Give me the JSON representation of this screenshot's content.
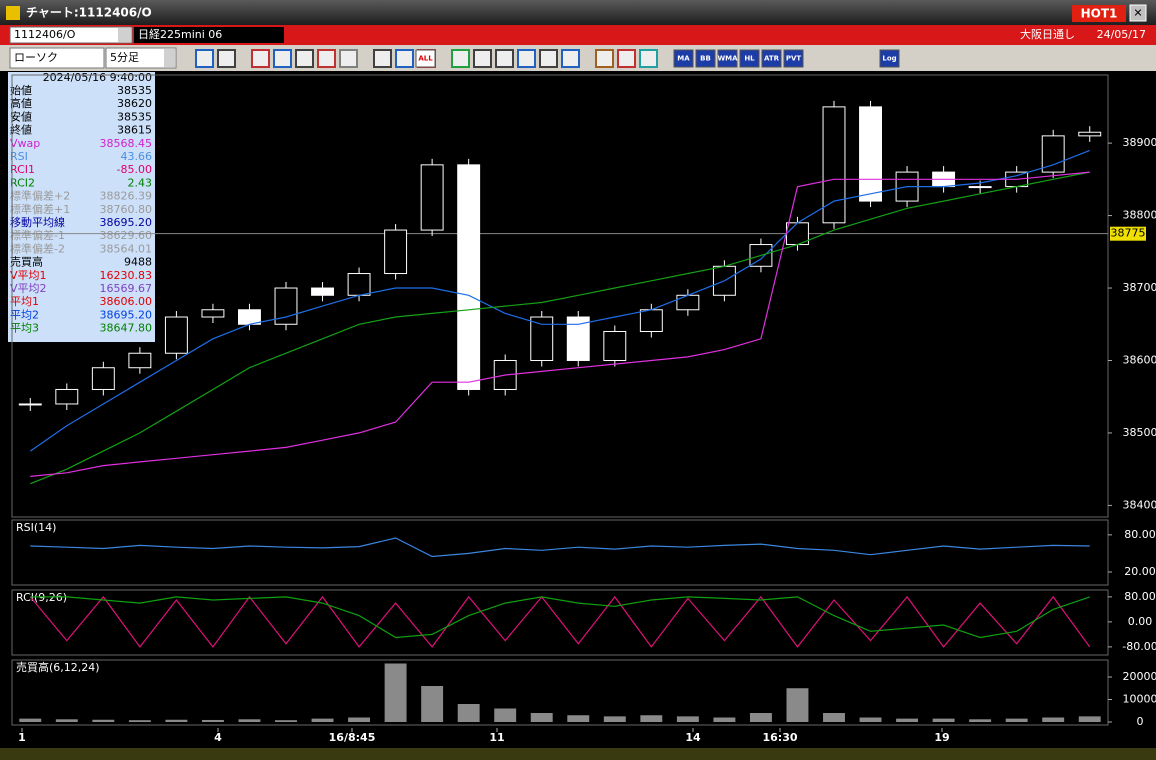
{
  "window": {
    "title": "チャート:1112406/O",
    "badge": "HOT1"
  },
  "toolbar": {
    "symbol": "1112406/O",
    "name": "日経225mini 06",
    "market": "大阪日通し",
    "date": "24/05/17",
    "chart_kind": "ローソク",
    "interval": "5分足",
    "buttons": [
      "ALL",
      "MA",
      "BB",
      "WMA",
      "HL",
      "ATR",
      "PVT",
      "Log"
    ]
  },
  "info_panel": {
    "datetime": "2024/05/16 9:40:00",
    "rows": [
      {
        "label": "始値",
        "value": "38535",
        "color": "#000000"
      },
      {
        "label": "高値",
        "value": "38620",
        "color": "#000000"
      },
      {
        "label": "安値",
        "value": "38535",
        "color": "#000000"
      },
      {
        "label": "終値",
        "value": "38615",
        "color": "#000000"
      },
      {
        "label": "Vwap",
        "value": "38568.45",
        "color": "#d020d0"
      },
      {
        "label": "RSI",
        "value": "43.66",
        "color": "#4a8ee0"
      },
      {
        "label": "RCI1",
        "value": "-85.00",
        "color": "#e0006a"
      },
      {
        "label": "RCI2",
        "value": "2.43",
        "color": "#008000"
      },
      {
        "label": "標準偏差+2",
        "value": "38826.39",
        "color": "#9a9a9a"
      },
      {
        "label": "標準偏差+1",
        "value": "38760.80",
        "color": "#9a9a9a"
      },
      {
        "label": "移動平均線",
        "value": "38695.20",
        "color": "#0000a0"
      },
      {
        "label": "標準偏差-1",
        "value": "38629.60",
        "color": "#9a9a9a"
      },
      {
        "label": "標準偏差-2",
        "value": "38564.01",
        "color": "#9a9a9a"
      },
      {
        "label": "売買高",
        "value": "9488",
        "color": "#000000"
      },
      {
        "label": "V平均1",
        "value": "16230.83",
        "color": "#e00000"
      },
      {
        "label": "V平均2",
        "value": "16569.67",
        "color": "#8040c0"
      },
      {
        "label": "平均1",
        "value": "38606.00",
        "color": "#e00000"
      },
      {
        "label": "平均2",
        "value": "38695.20",
        "color": "#0040e0"
      },
      {
        "label": "平均3",
        "value": "38647.80",
        "color": "#008000"
      }
    ]
  },
  "chart_data": [
    {
      "type": "candlestick",
      "ylim": [
        38384,
        38994
      ],
      "yticks": [
        38900,
        38800,
        38700,
        38600,
        38500,
        38400
      ],
      "current_price": 38775,
      "x_labels": [
        "1",
        "4",
        "16/8:45",
        "11",
        "14",
        "16:30",
        "19"
      ],
      "series": [
        {
          "name": "終値",
          "color": "#ffffff",
          "values": [
            38540,
            38560,
            38590,
            38610,
            38660,
            38670,
            38650,
            38700,
            38690,
            38720,
            38780,
            38870,
            38560,
            38600,
            38660,
            38600,
            38640,
            38670,
            38690,
            38730,
            38760,
            38790,
            38950,
            38820,
            38860,
            38840,
            38840,
            38860,
            38910,
            38915
          ]
        },
        {
          "name": "平均2",
          "color": "#1e6ee8",
          "values": [
            38475,
            38510,
            38540,
            38570,
            38600,
            38630,
            38650,
            38660,
            38675,
            38690,
            38700,
            38700,
            38690,
            38665,
            38650,
            38650,
            38660,
            38670,
            38690,
            38710,
            38740,
            38790,
            38820,
            38830,
            38840,
            38840,
            38845,
            38855,
            38870,
            38890
          ]
        },
        {
          "name": "平均3",
          "color": "#14a014",
          "values": [
            38430,
            38450,
            38475,
            38500,
            38530,
            38560,
            38590,
            38610,
            38630,
            38650,
            38660,
            38665,
            38670,
            38675,
            38680,
            38690,
            38700,
            38710,
            38720,
            38730,
            38745,
            38760,
            38780,
            38795,
            38810,
            38820,
            38830,
            38840,
            38850,
            38860
          ]
        },
        {
          "name": "Vwap",
          "color": "#e030e0",
          "values": [
            38440,
            38445,
            38455,
            38460,
            38465,
            38470,
            38475,
            38480,
            38490,
            38500,
            38515,
            38570,
            38570,
            38580,
            38585,
            38590,
            38595,
            38600,
            38605,
            38615,
            38630,
            38840,
            38850,
            38850,
            38850,
            38850,
            38850,
            38850,
            38855,
            38860
          ]
        }
      ]
    },
    {
      "type": "line",
      "title": "RSI(14)",
      "ylim": [
        -1,
        104
      ],
      "yticks": [
        {
          "value": 80,
          "label": "80.00"
        },
        {
          "value": 20,
          "label": "20.00"
        }
      ],
      "series": [
        {
          "name": "RSI",
          "color": "#3a86e0",
          "values": [
            62,
            60,
            58,
            63,
            60,
            58,
            62,
            60,
            59,
            61,
            75,
            45,
            50,
            58,
            55,
            60,
            57,
            62,
            60,
            63,
            65,
            58,
            55,
            48,
            55,
            62,
            57,
            60,
            63,
            62
          ]
        }
      ]
    },
    {
      "type": "line",
      "title": "RCI(9,26)",
      "ylim": [
        -106,
        102
      ],
      "yticks": [
        {
          "value": 80,
          "label": "80.00"
        },
        {
          "value": 0,
          "label": "0.00"
        },
        {
          "value": -80,
          "label": "-80.00"
        }
      ],
      "series": [
        {
          "name": "RCI1",
          "color": "#e0107a",
          "values": [
            80,
            -60,
            80,
            -80,
            70,
            -80,
            80,
            -70,
            80,
            -80,
            60,
            -80,
            80,
            -60,
            80,
            -70,
            80,
            -80,
            75,
            -60,
            80,
            -80,
            70,
            -60,
            80,
            -80,
            60,
            -70,
            80,
            -80
          ]
        },
        {
          "name": "RCI2",
          "color": "#10a010",
          "values": [
            80,
            80,
            70,
            60,
            80,
            70,
            75,
            80,
            60,
            20,
            -50,
            -40,
            20,
            60,
            80,
            60,
            50,
            70,
            80,
            75,
            70,
            80,
            20,
            -30,
            -20,
            -10,
            -50,
            -30,
            40,
            80
          ]
        }
      ]
    },
    {
      "type": "bar",
      "title": "売買高(6,12,24)",
      "ylim": [
        -1333,
        27556
      ],
      "yticks": [
        20000,
        10000,
        0
      ],
      "series": [
        {
          "name": "売買高",
          "color": "#8a8a8a",
          "values": [
            1500,
            1200,
            1000,
            800,
            1000,
            900,
            1200,
            800,
            1500,
            2000,
            26000,
            16000,
            8000,
            6000,
            4000,
            3000,
            2500,
            3000,
            2500,
            2000,
            4000,
            15000,
            4000,
            2000,
            1500,
            1500,
            1200,
            1500,
            2000,
            2500
          ]
        }
      ]
    }
  ]
}
